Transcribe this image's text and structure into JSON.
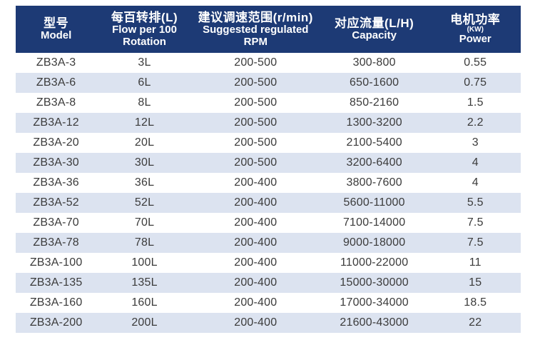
{
  "colors": {
    "header_bg": "#1d3a75",
    "header_text": "#ffffff",
    "row_bg": "#ffffff",
    "row_alt_bg": "#dce3f0",
    "cell_text": "#3b3b3b"
  },
  "header": {
    "columns": [
      {
        "width": "16%",
        "lines": [
          {
            "text": "型号",
            "style": "zh"
          },
          {
            "text": "Model",
            "style": "en"
          }
        ]
      },
      {
        "width": "19%",
        "lines": [
          {
            "text": "每百转排(L)",
            "style": "zh"
          },
          {
            "text": "Flow per 100",
            "style": "en"
          },
          {
            "text": "Rotation",
            "style": "en"
          }
        ]
      },
      {
        "width": "25%",
        "lines": [
          {
            "text": "建议调速范围(r/min)",
            "style": "zh"
          },
          {
            "text": "Suggested regulated",
            "style": "en"
          },
          {
            "text": "RPM",
            "style": "en"
          }
        ]
      },
      {
        "width": "22%",
        "lines": [
          {
            "text": "对应流量(L/H)",
            "style": "zh"
          },
          {
            "text": "Capacity",
            "style": "en"
          }
        ]
      },
      {
        "width": "18%",
        "lines": [
          {
            "text": "电机功率",
            "style": "zh"
          },
          {
            "text": "(KW)",
            "style": "small"
          },
          {
            "text": "Power",
            "style": "en"
          }
        ]
      }
    ]
  },
  "chart_data": {
    "type": "table",
    "title": "",
    "columns": [
      "型号 Model",
      "每百转排(L) Flow per 100 Rotation",
      "建议调速范围(r/min) Suggested regulated RPM",
      "对应流量(L/H) Capacity",
      "电机功率 (KW) Power"
    ],
    "rows": [
      [
        "ZB3A-3",
        "3L",
        "200-500",
        "300-800",
        "0.55"
      ],
      [
        "ZB3A-6",
        "6L",
        "200-500",
        "650-1600",
        "0.75"
      ],
      [
        "ZB3A-8",
        "8L",
        "200-500",
        "850-2160",
        "1.5"
      ],
      [
        "ZB3A-12",
        "12L",
        "200-500",
        "1300-3200",
        "2.2"
      ],
      [
        "ZB3A-20",
        "20L",
        "200-500",
        "2100-5400",
        "3"
      ],
      [
        "ZB3A-30",
        "30L",
        "200-500",
        "3200-6400",
        "4"
      ],
      [
        "ZB3A-36",
        "36L",
        "200-400",
        "3800-7600",
        "4"
      ],
      [
        "ZB3A-52",
        "52L",
        "200-400",
        "5600-11000",
        "5.5"
      ],
      [
        "ZB3A-70",
        "70L",
        "200-400",
        "7100-14000",
        "7.5"
      ],
      [
        "ZB3A-78",
        "78L",
        "200-400",
        "9000-18000",
        "7.5"
      ],
      [
        "ZB3A-100",
        "100L",
        "200-400",
        "11000-22000",
        "11"
      ],
      [
        "ZB3A-135",
        "135L",
        "200-400",
        "15000-30000",
        "15"
      ],
      [
        "ZB3A-160",
        "160L",
        "200-400",
        "17000-34000",
        "18.5"
      ],
      [
        "ZB3A-200",
        "200L",
        "200-400",
        "21600-43000",
        "22"
      ]
    ]
  }
}
